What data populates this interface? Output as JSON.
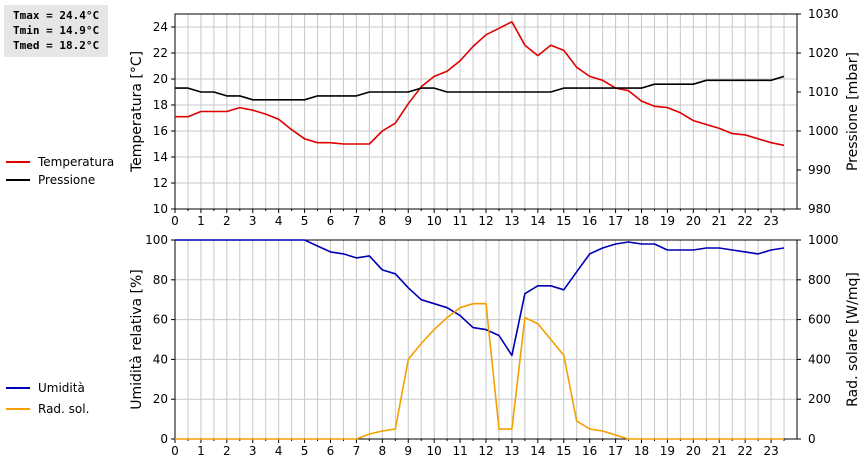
{
  "stats": {
    "tmax": "Tmax = 24.4°C",
    "tmin": "Tmin = 14.9°C",
    "tmed": "Tmed = 18.2°C"
  },
  "colors": {
    "temperature": "#e00000",
    "pressure": "#000000",
    "humidity": "#0000b4",
    "radiation": "#f4a000",
    "grid": "#c8c8c8",
    "axis": "#000000"
  },
  "chart_data": [
    {
      "type": "line",
      "x": [
        0.0,
        0.5,
        1.0,
        1.5,
        2.0,
        2.5,
        3.0,
        3.5,
        4.0,
        4.5,
        5.0,
        5.5,
        6.0,
        6.5,
        7.0,
        7.5,
        8.0,
        8.5,
        9.0,
        9.5,
        10.0,
        10.5,
        11.0,
        11.5,
        12.0,
        12.5,
        13.0,
        13.5,
        14.0,
        14.5,
        15.0,
        15.5,
        16.0,
        16.5,
        17.0,
        17.5,
        18.0,
        18.5,
        19.0,
        19.5,
        20.0,
        20.5,
        21.0,
        21.5,
        22.0,
        22.5,
        23.0,
        23.5
      ],
      "xticks": [
        "0",
        "1",
        "2",
        "3",
        "4",
        "5",
        "6",
        "7",
        "8",
        "9",
        "10",
        "11",
        "12",
        "13",
        "14",
        "15",
        "16",
        "17",
        "18",
        "19",
        "20",
        "21",
        "22",
        "23"
      ],
      "xlim": [
        0,
        24
      ],
      "ylabel": "Temperatura [°C]",
      "ylim": [
        10,
        25
      ],
      "yticks": [
        "10",
        "12",
        "14",
        "16",
        "18",
        "20",
        "22",
        "24"
      ],
      "y2label": "Pressione [mbar]",
      "y2lim": [
        980,
        1030
      ],
      "y2ticks": [
        "980",
        "990",
        "1000",
        "1010",
        "1020",
        "1030"
      ],
      "grid": true,
      "legend_position": "left",
      "series": [
        {
          "name": "Temperatura",
          "axis": "left",
          "values": [
            17.1,
            17.1,
            17.5,
            17.5,
            17.5,
            17.8,
            17.6,
            17.3,
            16.9,
            16.1,
            15.4,
            15.1,
            15.1,
            15.0,
            15.0,
            15.0,
            16.0,
            16.6,
            18.1,
            19.4,
            20.2,
            20.6,
            21.4,
            22.5,
            23.4,
            23.9,
            24.4,
            22.6,
            21.8,
            22.6,
            22.2,
            20.9,
            20.2,
            19.9,
            19.3,
            19.1,
            18.3,
            17.9,
            17.8,
            17.4,
            16.8,
            16.5,
            16.2,
            15.8,
            15.7,
            15.4,
            15.1,
            14.9
          ]
        },
        {
          "name": "Pressione",
          "axis": "right",
          "values": [
            1011,
            1011,
            1010,
            1010,
            1009,
            1009,
            1008,
            1008,
            1008,
            1008,
            1008,
            1009,
            1009,
            1009,
            1009,
            1010,
            1010,
            1010,
            1010,
            1011,
            1011,
            1010,
            1010,
            1010,
            1010,
            1010,
            1010,
            1010,
            1010,
            1010,
            1011,
            1011,
            1011,
            1011,
            1011,
            1011,
            1011,
            1012,
            1012,
            1012,
            1012,
            1013,
            1013,
            1013,
            1013,
            1013,
            1013,
            1014
          ]
        }
      ]
    },
    {
      "type": "line",
      "x": [
        0.0,
        0.5,
        1.0,
        1.5,
        2.0,
        2.5,
        3.0,
        3.5,
        4.0,
        4.5,
        5.0,
        5.5,
        6.0,
        6.5,
        7.0,
        7.5,
        8.0,
        8.5,
        9.0,
        9.5,
        10.0,
        10.5,
        11.0,
        11.5,
        12.0,
        12.5,
        13.0,
        13.5,
        14.0,
        14.5,
        15.0,
        15.5,
        16.0,
        16.5,
        17.0,
        17.5,
        18.0,
        18.5,
        19.0,
        19.5,
        20.0,
        20.5,
        21.0,
        21.5,
        22.0,
        22.5,
        23.0,
        23.5
      ],
      "xticks": [
        "0",
        "1",
        "2",
        "3",
        "4",
        "5",
        "6",
        "7",
        "8",
        "9",
        "10",
        "11",
        "12",
        "13",
        "14",
        "15",
        "16",
        "17",
        "18",
        "19",
        "20",
        "21",
        "22",
        "23"
      ],
      "xlim": [
        0,
        24
      ],
      "ylabel": "Umidità relativa [%]",
      "ylim": [
        0,
        100
      ],
      "yticks": [
        "0",
        "20",
        "40",
        "60",
        "80",
        "100"
      ],
      "y2label": "Rad. solare [W/mq]",
      "y2lim": [
        0,
        1000
      ],
      "y2ticks": [
        "0",
        "200",
        "400",
        "600",
        "800",
        "1000"
      ],
      "grid": true,
      "legend_position": "left",
      "series": [
        {
          "name": "Umidità",
          "axis": "left",
          "values": [
            100,
            100,
            100,
            100,
            100,
            100,
            100,
            100,
            100,
            100,
            100,
            97,
            94,
            93,
            91,
            92,
            85,
            83,
            76,
            70,
            68,
            66,
            62,
            56,
            55,
            52,
            42,
            73,
            77,
            77,
            75,
            84,
            93,
            96,
            98,
            99,
            98,
            98,
            95,
            95,
            95,
            96,
            96,
            95,
            94,
            93,
            95,
            96
          ]
        },
        {
          "name": "Rad. sol.",
          "axis": "right",
          "values": [
            0,
            0,
            0,
            0,
            0,
            0,
            0,
            0,
            0,
            0,
            0,
            0,
            0,
            0,
            0,
            25,
            40,
            50,
            400,
            480,
            550,
            610,
            660,
            680,
            680,
            50,
            50,
            610,
            580,
            500,
            420,
            90,
            50,
            40,
            20,
            0,
            0,
            0,
            0,
            0,
            0,
            0,
            0,
            0,
            0,
            0,
            0,
            0
          ]
        }
      ]
    }
  ]
}
